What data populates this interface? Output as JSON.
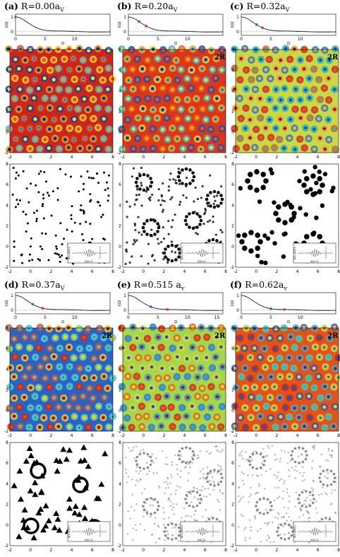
{
  "panels": [
    {
      "id": "a",
      "label": "(a)",
      "title": "R=0.00a",
      "sub": "V",
      "heat": "red",
      "pattern": "dots",
      "annot": "",
      "red_dot": 0.0,
      "blue_dot": null
    },
    {
      "id": "b",
      "label": "(b)",
      "title": "R=0.20a",
      "sub": "V",
      "heat": "redyellow",
      "pattern": "rings",
      "annot": "2R",
      "red_dot": 3.0,
      "blue_dot": 1.8
    },
    {
      "id": "c",
      "label": "(c)",
      "title": "R=0.32a",
      "sub": "V",
      "heat": "yellowgreen",
      "pattern": "blobs",
      "annot": "2R",
      "red_dot": 3.6,
      "blue_dot": 2.6
    },
    {
      "id": "d",
      "label": "(d)",
      "title": "R=0.37a",
      "sub": "V",
      "heat": "blue",
      "pattern": "triangles",
      "annot": "2R",
      "red_dot": 4.6,
      "blue_dot": 2.9
    },
    {
      "id": "e",
      "label": "(e)",
      "title": "R=0.515 a",
      "sub": "v",
      "heat": "greenyellow",
      "pattern": "gray",
      "annot": "2R",
      "red_dot": 6.6,
      "blue_dot": 3.8
    },
    {
      "id": "f",
      "label": "(f)",
      "title": "R=0.62a",
      "sub": "v",
      "heat": "redblue",
      "pattern": "grayrings",
      "annot": "2R",
      "red_dot": 7.3,
      "blue_dot": 5.0
    }
  ],
  "curve": {
    "ylabel": "I(Ω)",
    "xlabel": "Ω",
    "xticks": [
      "0",
      "5",
      "10"
    ],
    "xticks_e": [
      "0",
      "5",
      "10",
      "15"
    ],
    "yticks": [
      "1",
      "0"
    ]
  },
  "map_axis": {
    "xticks": [
      "-2",
      "0",
      "2",
      "4",
      "6",
      "8"
    ],
    "yticks": [
      "8",
      "6",
      "4",
      "2",
      "0",
      "-2"
    ]
  },
  "inset": {
    "ylabel": "β(1-y(βO))",
    "xlabel": "β(Ω-1)"
  }
}
